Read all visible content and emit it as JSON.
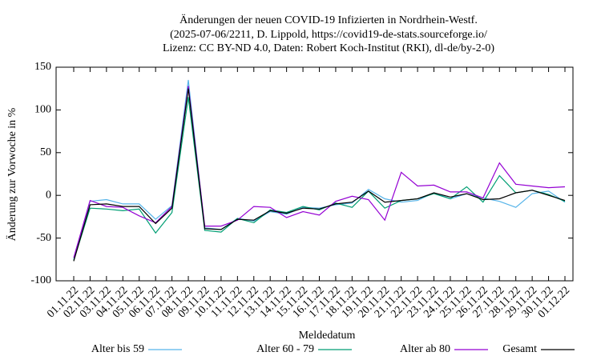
{
  "chart_data": {
    "type": "line",
    "title": [
      "Änderungen der neuen COVID-19 Infizierten in Nordrhein-Westf.",
      "(2025-07-06/2211, D. Lippold, https://covid19-de-stats.sourceforge.io/",
      "Lizenz: CC BY-ND 4.0, Daten: Robert Koch-Institut (RKI), dl-de/by-2-0)"
    ],
    "x_label": "Meldedatum",
    "y_label": "Änderung zur Vorwoche in %",
    "categories": [
      "01.11.22",
      "02.11.22",
      "03.11.22",
      "04.11.22",
      "05.11.22",
      "06.11.22",
      "07.11.22",
      "08.11.22",
      "09.11.22",
      "10.11.22",
      "11.11.22",
      "12.11.22",
      "13.11.22",
      "14.11.22",
      "15.11.22",
      "16.11.22",
      "17.11.22",
      "18.11.22",
      "19.11.22",
      "20.11.22",
      "21.11.22",
      "22.11.22",
      "23.11.22",
      "24.11.22",
      "25.11.22",
      "26.11.22",
      "27.11.22",
      "28.11.22",
      "29.11.22",
      "30.11.22",
      "01.12.22"
    ],
    "series": [
      {
        "name": "Alter bis 59",
        "color": "#56b4e9",
        "values": [
          -75,
          -7,
          -5,
          -10,
          -10,
          -28,
          -12,
          135,
          -38,
          -40,
          -27,
          -30,
          -19,
          -22,
          -14,
          -15,
          -11,
          -9,
          7,
          -4,
          -8,
          -6,
          3,
          -4,
          2,
          -3,
          -7,
          -14,
          2,
          5,
          -8
        ]
      },
      {
        "name": "Alter 60 - 79",
        "color": "#009e73",
        "values": [
          -76,
          -15,
          -16,
          -18,
          -16,
          -44,
          -20,
          115,
          -41,
          -43,
          -27,
          -32,
          -17,
          -20,
          -13,
          -17,
          -9,
          -14,
          5,
          -15,
          -6,
          -4,
          2,
          -4,
          10,
          -8,
          23,
          3,
          6,
          1,
          -7
        ]
      },
      {
        "name": "Alter ab 80",
        "color": "#9400d3",
        "values": [
          -73,
          -6,
          -13,
          -14,
          -24,
          -32,
          -13,
          128,
          -36,
          -36,
          -29,
          -13,
          -14,
          -26,
          -19,
          -23,
          -7,
          -1,
          -5,
          -29,
          27,
          11,
          12,
          4,
          4,
          -3,
          38,
          13,
          11,
          9,
          10
        ]
      },
      {
        "name": "Gesamt",
        "color": "#000000",
        "values": [
          -77,
          -11,
          -10,
          -13,
          -13,
          -33,
          -15,
          125,
          -39,
          -40,
          -28,
          -29,
          -18,
          -21,
          -15,
          -16,
          -10,
          -8,
          5,
          -8,
          -6,
          -4,
          3,
          -2,
          2,
          -5,
          -4,
          3,
          6,
          0,
          -6
        ]
      }
    ],
    "ylim": [
      -100,
      150
    ],
    "yticks": [
      -100,
      -50,
      0,
      50,
      100,
      150
    ],
    "legend": "bottom"
  }
}
